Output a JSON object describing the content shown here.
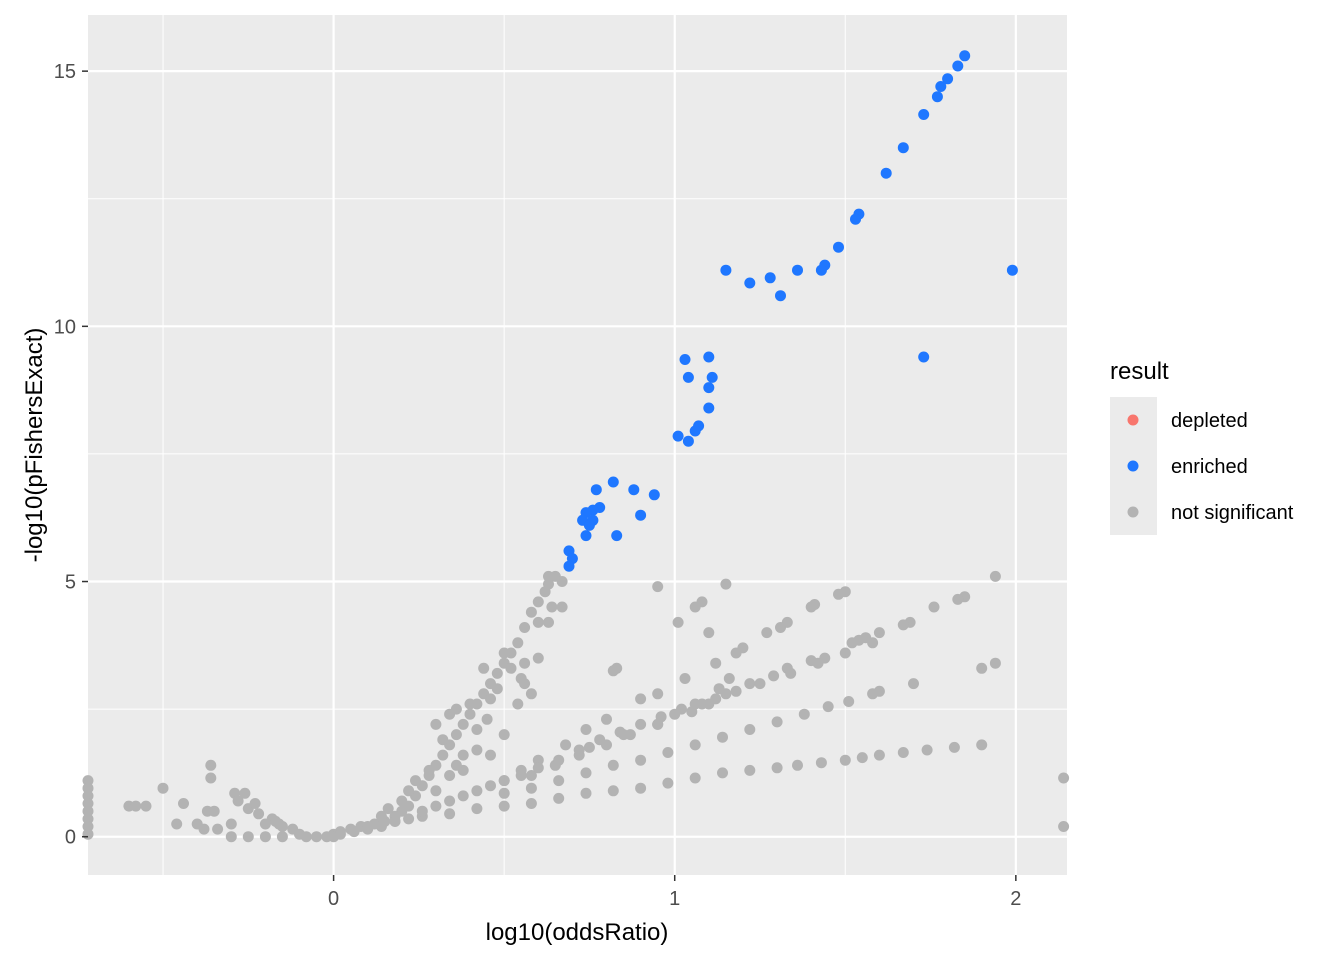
{
  "chart_data": {
    "type": "scatter",
    "xlabel": "log10(oddsRatio)",
    "ylabel": "-log10(pFishersExact)",
    "xlim": [
      -0.72,
      2.15
    ],
    "ylim": [
      -0.75,
      16.1
    ],
    "x_ticks": [
      0,
      1,
      2
    ],
    "x_tick_labels": [
      "0",
      "1",
      "2"
    ],
    "x_minor_ticks": [
      -0.5,
      0.5,
      1.5
    ],
    "y_ticks": [
      0,
      5,
      10,
      15
    ],
    "y_tick_labels": [
      "0",
      "5",
      "10",
      "15"
    ],
    "y_minor_ticks": [
      2.5,
      7.5,
      12.5
    ],
    "grid": true,
    "legend": {
      "title": "result",
      "position": "right",
      "entries": [
        {
          "label": "depleted",
          "color": "#F8766D"
        },
        {
          "label": "enriched",
          "color": "#1F77FF"
        },
        {
          "label": "not significant",
          "color": "#B3B3B3"
        }
      ]
    },
    "series": [
      {
        "name": "depleted",
        "color": "#F8766D",
        "points": []
      },
      {
        "name": "enriched",
        "color": "#1F77FF",
        "points": [
          [
            1.85,
            15.3
          ],
          [
            1.83,
            15.1
          ],
          [
            1.8,
            14.85
          ],
          [
            1.78,
            14.7
          ],
          [
            1.77,
            14.5
          ],
          [
            1.73,
            14.15
          ],
          [
            1.67,
            13.5
          ],
          [
            1.62,
            13.0
          ],
          [
            1.54,
            12.2
          ],
          [
            1.53,
            12.1
          ],
          [
            1.48,
            11.55
          ],
          [
            1.44,
            11.2
          ],
          [
            1.43,
            11.1
          ],
          [
            1.36,
            11.1
          ],
          [
            1.31,
            10.6
          ],
          [
            1.28,
            10.95
          ],
          [
            1.22,
            10.85
          ],
          [
            1.15,
            11.1
          ],
          [
            1.99,
            11.1
          ],
          [
            1.73,
            9.4
          ],
          [
            1.1,
            9.4
          ],
          [
            1.03,
            9.35
          ],
          [
            1.11,
            9.0
          ],
          [
            1.04,
            9.0
          ],
          [
            1.1,
            8.8
          ],
          [
            1.1,
            8.4
          ],
          [
            1.07,
            8.05
          ],
          [
            1.06,
            7.95
          ],
          [
            1.01,
            7.85
          ],
          [
            1.04,
            7.75
          ],
          [
            0.82,
            6.95
          ],
          [
            0.77,
            6.8
          ],
          [
            0.88,
            6.8
          ],
          [
            0.94,
            6.7
          ],
          [
            0.78,
            6.45
          ],
          [
            0.76,
            6.4
          ],
          [
            0.9,
            6.3
          ],
          [
            0.74,
            6.35
          ],
          [
            0.73,
            6.2
          ],
          [
            0.76,
            6.2
          ],
          [
            0.75,
            6.1
          ],
          [
            0.74,
            5.9
          ],
          [
            0.83,
            5.9
          ],
          [
            0.69,
            5.6
          ],
          [
            0.7,
            5.45
          ],
          [
            0.69,
            5.3
          ]
        ]
      },
      {
        "name": "not significant",
        "color": "#B3B3B3",
        "points": [
          [
            0.63,
            5.1
          ],
          [
            0.65,
            5.1
          ],
          [
            0.67,
            5.0
          ],
          [
            0.63,
            4.95
          ],
          [
            0.62,
            4.8
          ],
          [
            0.6,
            4.6
          ],
          [
            0.64,
            4.5
          ],
          [
            0.67,
            4.5
          ],
          [
            0.58,
            4.4
          ],
          [
            0.6,
            4.2
          ],
          [
            0.63,
            4.2
          ],
          [
            0.56,
            4.1
          ],
          [
            0.54,
            3.8
          ],
          [
            0.52,
            3.6
          ],
          [
            0.6,
            3.5
          ],
          [
            0.56,
            3.4
          ],
          [
            0.5,
            3.4
          ],
          [
            0.48,
            3.2
          ],
          [
            0.55,
            3.1
          ],
          [
            0.46,
            3.0
          ],
          [
            0.44,
            2.8
          ],
          [
            0.58,
            2.8
          ],
          [
            0.42,
            2.6
          ],
          [
            0.54,
            2.6
          ],
          [
            0.4,
            2.4
          ],
          [
            0.45,
            2.3
          ],
          [
            0.38,
            2.2
          ],
          [
            0.36,
            2.0
          ],
          [
            0.5,
            2.0
          ],
          [
            0.34,
            1.8
          ],
          [
            0.42,
            1.7
          ],
          [
            0.32,
            1.6
          ],
          [
            0.46,
            1.6
          ],
          [
            0.3,
            1.4
          ],
          [
            0.38,
            1.3
          ],
          [
            0.28,
            1.2
          ],
          [
            0.34,
            1.2
          ],
          [
            0.26,
            1.0
          ],
          [
            0.3,
            0.9
          ],
          [
            0.24,
            0.8
          ],
          [
            0.22,
            0.6
          ],
          [
            0.2,
            0.5
          ],
          [
            0.18,
            0.4
          ],
          [
            0.15,
            0.3
          ],
          [
            0.12,
            0.25
          ],
          [
            0.08,
            0.2
          ],
          [
            0.05,
            0.15
          ],
          [
            0.02,
            0.1
          ],
          [
            0.0,
            0.05
          ],
          [
            0.95,
            4.9
          ],
          [
            1.15,
            4.95
          ],
          [
            1.08,
            4.6
          ],
          [
            1.06,
            4.5
          ],
          [
            1.01,
            4.2
          ],
          [
            1.1,
            4.0
          ],
          [
            0.83,
            3.3
          ],
          [
            0.82,
            3.25
          ],
          [
            1.12,
            3.4
          ],
          [
            1.03,
            3.1
          ],
          [
            0.95,
            2.8
          ],
          [
            0.9,
            2.7
          ],
          [
            0.8,
            2.3
          ],
          [
            0.74,
            2.1
          ],
          [
            0.68,
            1.8
          ],
          [
            0.6,
            1.5
          ],
          [
            0.55,
            1.3
          ],
          [
            0.5,
            1.1
          ],
          [
            1.5,
            4.8
          ],
          [
            1.48,
            4.75
          ],
          [
            1.41,
            4.55
          ],
          [
            1.4,
            4.5
          ],
          [
            1.33,
            4.2
          ],
          [
            1.31,
            4.1
          ],
          [
            1.27,
            4.0
          ],
          [
            1.2,
            3.7
          ],
          [
            1.18,
            3.6
          ],
          [
            1.44,
            3.5
          ],
          [
            1.16,
            3.1
          ],
          [
            1.13,
            2.9
          ],
          [
            1.06,
            2.6
          ],
          [
            1.0,
            2.4
          ],
          [
            0.95,
            2.2
          ],
          [
            0.87,
            2.0
          ],
          [
            0.8,
            1.8
          ],
          [
            0.72,
            1.6
          ],
          [
            0.65,
            1.4
          ],
          [
            0.58,
            1.2
          ],
          [
            1.94,
            5.1
          ],
          [
            1.85,
            4.7
          ],
          [
            1.83,
            4.65
          ],
          [
            1.76,
            4.5
          ],
          [
            1.69,
            4.2
          ],
          [
            1.67,
            4.15
          ],
          [
            1.6,
            4.0
          ],
          [
            1.56,
            3.9
          ],
          [
            1.54,
            3.85
          ],
          [
            1.52,
            3.8
          ],
          [
            1.4,
            3.45
          ],
          [
            1.33,
            3.3
          ],
          [
            1.29,
            3.15
          ],
          [
            1.22,
            3.0
          ],
          [
            1.15,
            2.8
          ],
          [
            1.1,
            2.6
          ],
          [
            1.05,
            2.45
          ],
          [
            0.95,
            2.2
          ],
          [
            0.85,
            2.0
          ],
          [
            0.75,
            1.75
          ],
          [
            1.94,
            3.4
          ],
          [
            1.9,
            3.3
          ],
          [
            1.7,
            3.0
          ],
          [
            1.6,
            2.85
          ],
          [
            1.58,
            2.8
          ],
          [
            1.51,
            2.65
          ],
          [
            1.45,
            2.55
          ],
          [
            1.38,
            2.4
          ],
          [
            1.3,
            2.25
          ],
          [
            1.22,
            2.1
          ],
          [
            1.14,
            1.95
          ],
          [
            1.06,
            1.8
          ],
          [
            0.98,
            1.65
          ],
          [
            0.9,
            1.5
          ],
          [
            0.82,
            1.4
          ],
          [
            0.74,
            1.25
          ],
          [
            0.66,
            1.1
          ],
          [
            0.58,
            0.95
          ],
          [
            0.5,
            0.85
          ],
          [
            1.9,
            1.8
          ],
          [
            1.82,
            1.75
          ],
          [
            1.74,
            1.7
          ],
          [
            1.67,
            1.65
          ],
          [
            1.6,
            1.6
          ],
          [
            1.55,
            1.55
          ],
          [
            1.5,
            1.5
          ],
          [
            1.43,
            1.45
          ],
          [
            1.36,
            1.4
          ],
          [
            1.3,
            1.35
          ],
          [
            1.22,
            1.3
          ],
          [
            1.14,
            1.25
          ],
          [
            1.06,
            1.15
          ],
          [
            0.98,
            1.05
          ],
          [
            0.9,
            0.95
          ],
          [
            0.82,
            0.9
          ],
          [
            0.74,
            0.85
          ],
          [
            0.66,
            0.75
          ],
          [
            0.58,
            0.65
          ],
          [
            0.5,
            0.6
          ],
          [
            0.42,
            0.55
          ],
          [
            0.34,
            0.45
          ],
          [
            0.26,
            0.4
          ],
          [
            0.18,
            0.3
          ],
          [
            0.1,
            0.2
          ],
          [
            2.14,
            1.15
          ],
          [
            2.14,
            0.2
          ],
          [
            -0.72,
            1.1
          ],
          [
            -0.72,
            0.95
          ],
          [
            -0.72,
            0.8
          ],
          [
            -0.72,
            0.65
          ],
          [
            -0.72,
            0.5
          ],
          [
            -0.72,
            0.35
          ],
          [
            -0.72,
            0.2
          ],
          [
            -0.72,
            0.05
          ],
          [
            -0.6,
            0.6
          ],
          [
            -0.58,
            0.6
          ],
          [
            -0.55,
            0.6
          ],
          [
            -0.5,
            0.95
          ],
          [
            -0.46,
            0.25
          ],
          [
            -0.44,
            0.65
          ],
          [
            -0.4,
            0.25
          ],
          [
            -0.38,
            0.15
          ],
          [
            -0.37,
            0.5
          ],
          [
            -0.36,
            1.4
          ],
          [
            -0.36,
            1.15
          ],
          [
            -0.35,
            0.5
          ],
          [
            -0.34,
            0.15
          ],
          [
            -0.3,
            0.25
          ],
          [
            -0.29,
            0.85
          ],
          [
            -0.28,
            0.7
          ],
          [
            -0.26,
            0.85
          ],
          [
            -0.25,
            0.55
          ],
          [
            -0.23,
            0.65
          ],
          [
            -0.22,
            0.45
          ],
          [
            -0.2,
            0.25
          ],
          [
            -0.18,
            0.35
          ],
          [
            -0.17,
            0.3
          ],
          [
            -0.16,
            0.25
          ],
          [
            -0.15,
            0.2
          ],
          [
            -0.3,
            0.0
          ],
          [
            -0.25,
            0.0
          ],
          [
            -0.2,
            0.0
          ],
          [
            -0.15,
            0.0
          ],
          [
            -0.1,
            0.05
          ],
          [
            -0.05,
            0.0
          ],
          [
            0.0,
            0.0
          ],
          [
            -0.12,
            0.15
          ],
          [
            -0.08,
            0.0
          ],
          [
            -0.02,
            0.0
          ],
          [
            0.02,
            0.05
          ],
          [
            0.06,
            0.1
          ],
          [
            0.1,
            0.15
          ],
          [
            0.14,
            0.2
          ],
          [
            0.18,
            0.3
          ],
          [
            0.22,
            0.35
          ],
          [
            0.26,
            0.5
          ],
          [
            0.3,
            0.6
          ],
          [
            0.34,
            0.7
          ],
          [
            0.38,
            0.8
          ],
          [
            0.42,
            0.9
          ],
          [
            0.46,
            1.0
          ],
          [
            0.5,
            1.1
          ],
          [
            0.55,
            1.2
          ],
          [
            0.6,
            1.35
          ],
          [
            0.66,
            1.5
          ],
          [
            0.72,
            1.7
          ],
          [
            0.78,
            1.9
          ],
          [
            0.84,
            2.05
          ],
          [
            0.9,
            2.2
          ],
          [
            0.96,
            2.35
          ],
          [
            1.02,
            2.5
          ],
          [
            1.08,
            2.6
          ],
          [
            1.12,
            2.7
          ],
          [
            1.18,
            2.85
          ],
          [
            1.25,
            3.0
          ],
          [
            1.34,
            3.2
          ],
          [
            1.42,
            3.4
          ],
          [
            1.5,
            3.6
          ],
          [
            1.58,
            3.8
          ],
          [
            0.3,
            2.2
          ],
          [
            0.34,
            2.4
          ],
          [
            0.32,
            1.9
          ],
          [
            0.36,
            2.5
          ],
          [
            0.4,
            2.6
          ],
          [
            0.44,
            3.3
          ],
          [
            0.5,
            3.6
          ],
          [
            0.52,
            3.3
          ],
          [
            0.56,
            3.0
          ],
          [
            0.48,
            2.9
          ],
          [
            0.46,
            2.7
          ],
          [
            0.42,
            2.1
          ],
          [
            0.38,
            1.6
          ],
          [
            0.36,
            1.4
          ],
          [
            0.28,
            1.3
          ],
          [
            0.24,
            1.1
          ],
          [
            0.22,
            0.9
          ],
          [
            0.2,
            0.7
          ],
          [
            0.16,
            0.55
          ],
          [
            0.14,
            0.4
          ]
        ]
      }
    ]
  }
}
